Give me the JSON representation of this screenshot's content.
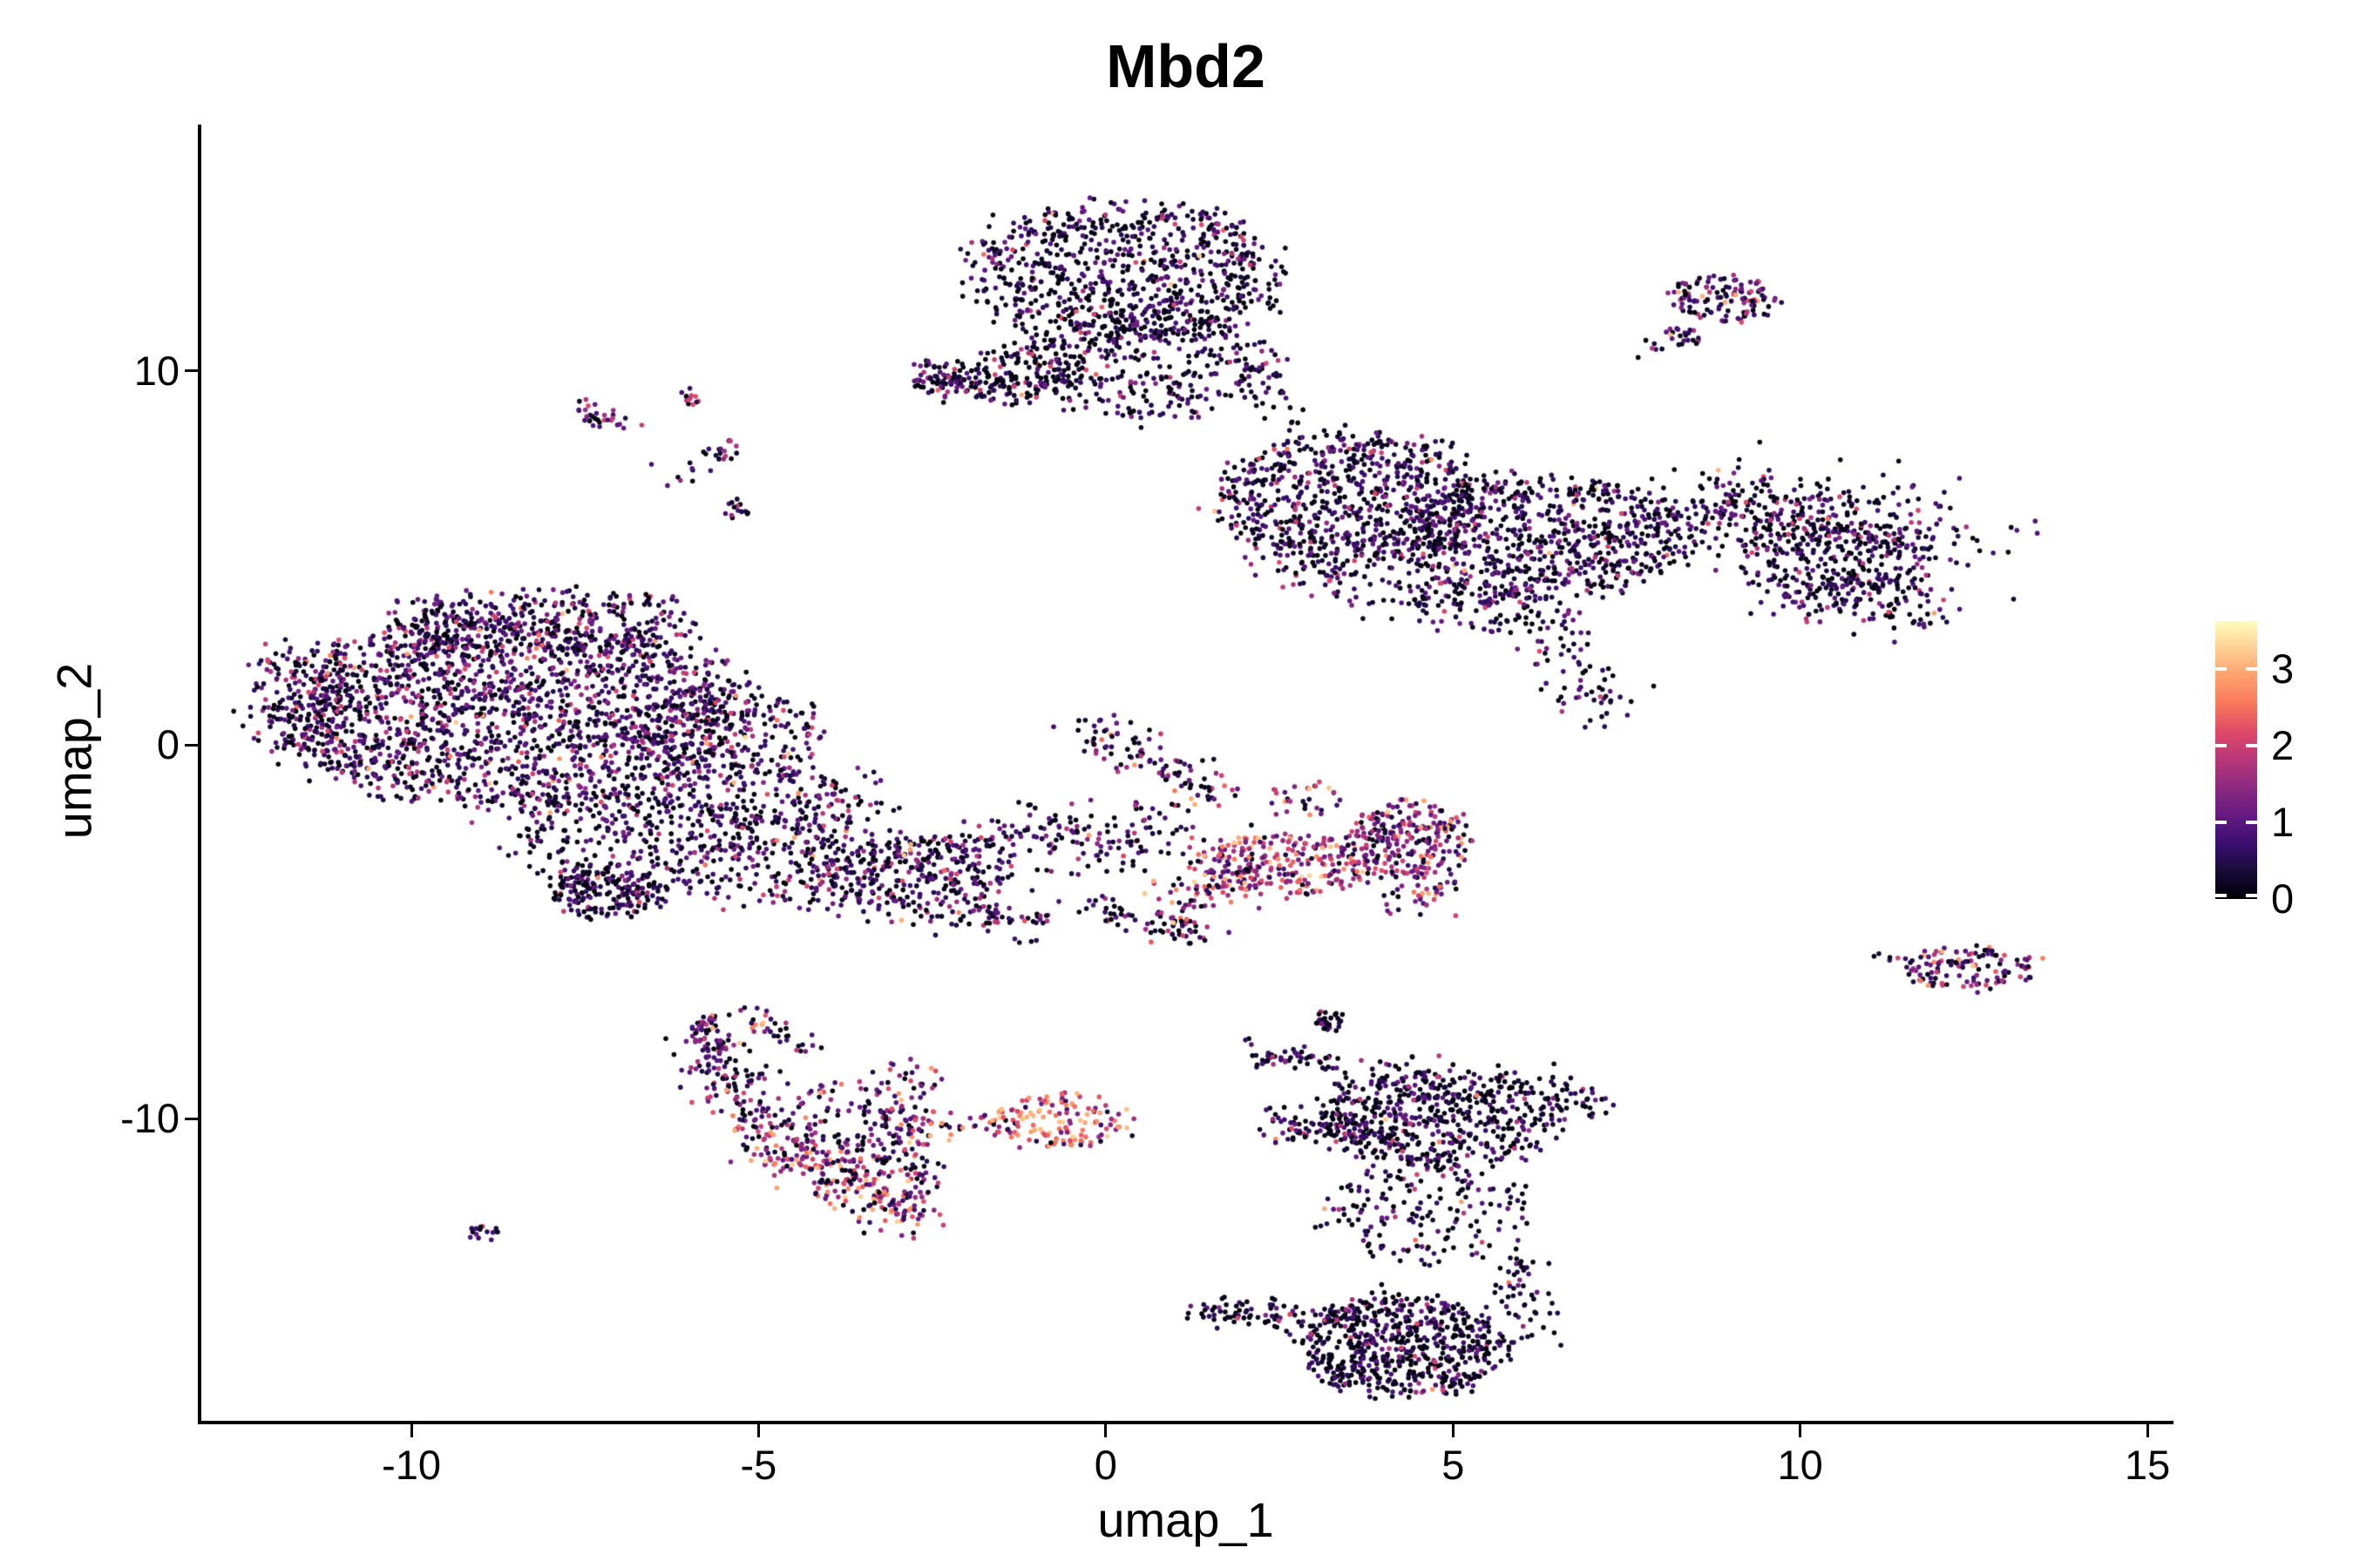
{
  "title": "Mbd2",
  "axes": {
    "x": {
      "label": "umap_1",
      "ticks": [
        -10,
        -5,
        0,
        5,
        10,
        15
      ]
    },
    "y": {
      "label": "umap_2",
      "ticks": [
        -10,
        0,
        10
      ]
    }
  },
  "colorbar": {
    "min": 0,
    "max": 3.63,
    "ticks": [
      0,
      1,
      2,
      3
    ],
    "colormap": "magma",
    "stops": [
      "#000004",
      "#160b39",
      "#3b0f70",
      "#641a80",
      "#8c2981",
      "#b73779",
      "#de4968",
      "#f8765c",
      "#fe9f6d",
      "#fecf92",
      "#fcfdbf"
    ]
  },
  "chart_data": {
    "type": "scatter",
    "title": "Mbd2",
    "xlabel": "umap_1",
    "ylabel": "umap_2",
    "xlim": [
      -13.05,
      15.35
    ],
    "ylim": [
      -18.13,
      16.57
    ],
    "grid": false,
    "legend_position": "right",
    "point_radius_px": 2.8,
    "expression_bands": [
      [
        0,
        0.25
      ],
      [
        0.25,
        1.15
      ],
      [
        1.15,
        2.2
      ],
      [
        2.2,
        3.3
      ]
    ],
    "clusters": [
      {
        "name": "top-center-main",
        "shape": "blob",
        "x": 0.3,
        "y": 12.6,
        "rx": 2.25,
        "ry": 1.9,
        "n": 760,
        "expr": [
          0.48,
          0.44,
          0.075,
          0.005
        ]
      },
      {
        "name": "top-center-lower",
        "shape": "blob",
        "x": 0.55,
        "y": 10.2,
        "rx": 1.85,
        "ry": 1.55,
        "n": 340,
        "expr": [
          0.48,
          0.44,
          0.075,
          0.005
        ]
      },
      {
        "name": "top-center-lowerleft",
        "shape": "blob",
        "x": -1.25,
        "y": 9.9,
        "rx": 0.95,
        "ry": 0.85,
        "n": 120,
        "expr": [
          0.45,
          0.45,
          0.09,
          0.01
        ]
      },
      {
        "name": "top-beak-clump",
        "shape": "blob",
        "x": -2.45,
        "y": 9.85,
        "rx": 0.38,
        "ry": 0.5,
        "n": 55,
        "expr": [
          0.4,
          0.45,
          0.14,
          0.01
        ]
      },
      {
        "name": "top-beak-streak",
        "shape": "streak",
        "x1": -2.2,
        "y1": 9.85,
        "x2": -1.3,
        "y2": 9.65,
        "w": 0.3,
        "n": 55,
        "expr": [
          0.42,
          0.44,
          0.13,
          0.01
        ]
      },
      {
        "name": "top-right-strand",
        "shape": "streak",
        "x1": 2.15,
        "y1": 10.1,
        "x2": 2.95,
        "y2": 8.4,
        "w": 0.22,
        "n": 28,
        "expr": [
          0.45,
          0.45,
          0.1,
          0
        ]
      },
      {
        "name": "topright-small-main",
        "shape": "blob",
        "x": 8.95,
        "y": 11.95,
        "rx": 0.78,
        "ry": 0.6,
        "n": 125,
        "expr": [
          0.2,
          0.5,
          0.24,
          0.06
        ]
      },
      {
        "name": "topright-small-mini",
        "shape": "blob",
        "x": 8.32,
        "y": 10.95,
        "rx": 0.3,
        "ry": 0.3,
        "n": 22,
        "expr": [
          0.25,
          0.45,
          0.25,
          0.05
        ]
      },
      {
        "name": "topright-trail",
        "shape": "streak",
        "x1": 7.75,
        "y1": 10.55,
        "x2": 8.15,
        "y2": 10.75,
        "w": 0.12,
        "n": 6,
        "expr": [
          0.3,
          0.5,
          0.2,
          0
        ]
      },
      {
        "name": "rightband-left-lobe",
        "shape": "blob",
        "x": 3.55,
        "y": 6.55,
        "rx": 1.95,
        "ry": 1.75,
        "n": 720,
        "expr": [
          0.4,
          0.48,
          0.11,
          0.01
        ]
      },
      {
        "name": "rightband-main",
        "shape": "blob",
        "x": 6.3,
        "y": 5.6,
        "rx": 2.2,
        "ry": 1.6,
        "n": 700,
        "expr": [
          0.42,
          0.47,
          0.1,
          0.01
        ]
      },
      {
        "name": "rightband-upper-arm",
        "shape": "streak",
        "x1": 8.2,
        "y1": 6.45,
        "x2": 11.9,
        "y2": 5.6,
        "w": 0.65,
        "n": 380,
        "expr": [
          0.45,
          0.44,
          0.1,
          0.01
        ]
      },
      {
        "name": "rightband-lower-prong",
        "shape": "streak",
        "x1": 9.8,
        "y1": 4.25,
        "x2": 11.95,
        "y2": 3.7,
        "w": 0.4,
        "n": 165,
        "expr": [
          0.42,
          0.45,
          0.12,
          0.01
        ]
      },
      {
        "name": "rightband-mid-fill",
        "shape": "blob",
        "x": 10.5,
        "y": 4.95,
        "rx": 1.45,
        "ry": 0.85,
        "n": 165,
        "expr": [
          0.42,
          0.46,
          0.11,
          0.01
        ]
      },
      {
        "name": "rightband-bottom-edge",
        "shape": "streak",
        "x1": 4.0,
        "y1": 4.3,
        "x2": 6.4,
        "y2": 3.6,
        "w": 0.45,
        "n": 150,
        "expr": [
          0.42,
          0.46,
          0.11,
          0.01
        ]
      },
      {
        "name": "rightband-left-wisp",
        "shape": "streak",
        "x1": 2.5,
        "y1": 4.8,
        "x2": 3.8,
        "y2": 4.3,
        "w": 0.35,
        "n": 60,
        "expr": [
          0.4,
          0.47,
          0.12,
          0.01
        ]
      },
      {
        "name": "rightband-down-tail",
        "shape": "streak",
        "x1": 6.25,
        "y1": 3.3,
        "x2": 7.3,
        "y2": 0.8,
        "w": 0.3,
        "n": 70,
        "expr": [
          0.45,
          0.45,
          0.09,
          0.01
        ]
      },
      {
        "name": "leftbig-main",
        "shape": "blob",
        "x": -8.6,
        "y": 0.9,
        "rx": 3.4,
        "ry": 2.6,
        "n": 1850,
        "expr": [
          0.27,
          0.52,
          0.19,
          0.02
        ]
      },
      {
        "name": "leftbig-top",
        "shape": "blob",
        "x": -8.0,
        "y": 3.3,
        "rx": 2.2,
        "ry": 0.95,
        "n": 300,
        "expr": [
          0.3,
          0.5,
          0.18,
          0.02
        ]
      },
      {
        "name": "leftbig-left-edge",
        "shape": "blob",
        "x": -11.6,
        "y": 1.3,
        "rx": 0.85,
        "ry": 1.6,
        "n": 150,
        "expr": [
          0.3,
          0.52,
          0.17,
          0.01
        ]
      },
      {
        "name": "leftbig-right-ext",
        "shape": "blob",
        "x": -5.4,
        "y": 0.2,
        "rx": 1.35,
        "ry": 1.35,
        "n": 250,
        "expr": [
          0.3,
          0.5,
          0.18,
          0.02
        ]
      },
      {
        "name": "leftbig-bottom-triangle",
        "shape": "blob",
        "x": -6.6,
        "y": -2.6,
        "rx": 1.9,
        "ry": 1.5,
        "n": 400,
        "expr": [
          0.42,
          0.46,
          0.11,
          0.01
        ]
      },
      {
        "name": "leftbig-bottom-clump",
        "shape": "blob",
        "x": -7.15,
        "y": -4.0,
        "rx": 0.8,
        "ry": 0.65,
        "n": 150,
        "expr": [
          0.5,
          0.42,
          0.075,
          0.005
        ]
      },
      {
        "name": "leftbig-lowerright-spray",
        "shape": "blob",
        "x": -4.6,
        "y": -1.9,
        "rx": 1.25,
        "ry": 1.2,
        "n": 130,
        "expr": [
          0.38,
          0.47,
          0.14,
          0.01
        ]
      },
      {
        "name": "left-middle-connector",
        "shape": "blob",
        "x": -3.85,
        "y": -2.0,
        "rx": 0.9,
        "ry": 1.4,
        "n": 70,
        "expr": [
          0.35,
          0.47,
          0.16,
          0.02
        ]
      },
      {
        "name": "speck-streak",
        "shape": "streak",
        "x1": -7.6,
        "y1": 8.95,
        "x2": -6.85,
        "y2": 8.55,
        "w": 0.14,
        "n": 30,
        "expr": [
          0.22,
          0.46,
          0.3,
          0.02
        ]
      },
      {
        "name": "speck-1",
        "shape": "blob",
        "x": -5.95,
        "y": 9.35,
        "rx": 0.2,
        "ry": 0.25,
        "n": 12,
        "expr": [
          0.25,
          0.45,
          0.3,
          0
        ]
      },
      {
        "name": "speck-2",
        "shape": "blob",
        "x": -5.5,
        "y": 7.85,
        "rx": 0.26,
        "ry": 0.3,
        "n": 16,
        "expr": [
          0.3,
          0.4,
          0.3,
          0
        ]
      },
      {
        "name": "speck-3",
        "shape": "blob",
        "x": -5.3,
        "y": 6.35,
        "rx": 0.22,
        "ry": 0.28,
        "n": 14,
        "expr": [
          0.35,
          0.4,
          0.25,
          0
        ]
      },
      {
        "name": "speck-scatter",
        "shape": "blob",
        "x": -6.1,
        "y": 7.4,
        "rx": 0.5,
        "ry": 0.6,
        "n": 10,
        "expr": [
          0.3,
          0.45,
          0.25,
          0
        ]
      },
      {
        "name": "midband-upper-edge",
        "shape": "streak",
        "x1": -5.0,
        "y1": -3.7,
        "x2": -0.6,
        "y2": -2.05,
        "w": 0.25,
        "n": 120,
        "expr": [
          0.34,
          0.46,
          0.18,
          0.02
        ]
      },
      {
        "name": "midband-lower-edge",
        "shape": "streak",
        "x1": -5.0,
        "y1": -3.85,
        "x2": -0.6,
        "y2": -4.85,
        "w": 0.25,
        "n": 120,
        "expr": [
          0.36,
          0.44,
          0.18,
          0.02
        ]
      },
      {
        "name": "midband-fill",
        "shape": "blob",
        "x": -2.7,
        "y": -3.4,
        "rx": 1.5,
        "ry": 0.95,
        "n": 230,
        "expr": [
          0.33,
          0.45,
          0.2,
          0.02
        ]
      },
      {
        "name": "midband-connector",
        "shape": "streak",
        "x1": -1.2,
        "y1": -2.6,
        "x2": 0.9,
        "y2": -2.45,
        "w": 0.5,
        "n": 130,
        "expr": [
          0.3,
          0.44,
          0.23,
          0.03
        ]
      },
      {
        "name": "midband-diag-branch",
        "shape": "streak",
        "x1": -0.3,
        "y1": 0.5,
        "x2": 1.6,
        "y2": -1.35,
        "w": 0.28,
        "n": 110,
        "expr": [
          0.3,
          0.38,
          0.26,
          0.06
        ]
      },
      {
        "name": "midband-low-branch",
        "shape": "streak",
        "x1": -0.3,
        "y1": -4.3,
        "x2": 1.5,
        "y2": -5.05,
        "w": 0.22,
        "n": 75,
        "expr": [
          0.4,
          0.4,
          0.17,
          0.03
        ]
      },
      {
        "name": "midband-pink-band",
        "shape": "blob",
        "x": 2.6,
        "y": -3.2,
        "rx": 1.4,
        "ry": 0.8,
        "n": 260,
        "expr": [
          0.07,
          0.25,
          0.45,
          0.23
        ]
      },
      {
        "name": "midband-pink-tip",
        "shape": "streak",
        "x1": 0.95,
        "y1": -4.2,
        "x2": 2.0,
        "y2": -3.4,
        "w": 0.3,
        "n": 65,
        "expr": [
          0.1,
          0.28,
          0.42,
          0.2
        ]
      },
      {
        "name": "midband-right-lobe",
        "shape": "blob",
        "x": 4.35,
        "y": -2.55,
        "rx": 0.88,
        "ry": 1.05,
        "n": 235,
        "expr": [
          0.1,
          0.33,
          0.42,
          0.15
        ]
      },
      {
        "name": "midband-pink-spray",
        "shape": "blob",
        "x": 2.9,
        "y": -1.5,
        "rx": 0.55,
        "ry": 0.5,
        "n": 30,
        "expr": [
          0.1,
          0.3,
          0.4,
          0.2
        ]
      },
      {
        "name": "midband-lobe-tail",
        "shape": "streak",
        "x1": 3.95,
        "y1": -4.4,
        "x2": 5.0,
        "y2": -3.7,
        "w": 0.25,
        "n": 40,
        "expr": [
          0.15,
          0.35,
          0.35,
          0.15
        ]
      },
      {
        "name": "crescent-tip-clump",
        "shape": "blob",
        "x": -5.69,
        "y": -7.7,
        "rx": 0.3,
        "ry": 0.5,
        "n": 42,
        "expr": [
          0.28,
          0.36,
          0.26,
          0.1
        ]
      },
      {
        "name": "crescent-outer-upper",
        "shape": "streak",
        "x1": -5.75,
        "y1": -7.9,
        "x2": -4.85,
        "y2": -10.6,
        "w": 0.3,
        "n": 150,
        "expr": [
          0.27,
          0.4,
          0.25,
          0.08
        ]
      },
      {
        "name": "crescent-outer-lower",
        "shape": "streak",
        "x1": -4.85,
        "y1": -10.6,
        "x2": -2.9,
        "y2": -12.6,
        "w": 0.32,
        "n": 190,
        "expr": [
          0.08,
          0.22,
          0.38,
          0.32
        ]
      },
      {
        "name": "crescent-fan",
        "shape": "blob",
        "x": -3.7,
        "y": -10.4,
        "rx": 0.95,
        "ry": 1.4,
        "n": 150,
        "expr": [
          0.24,
          0.38,
          0.28,
          0.1
        ]
      },
      {
        "name": "crescent-right-edge",
        "shape": "streak",
        "x1": -2.88,
        "y1": -8.7,
        "x2": -2.78,
        "y2": -12.55,
        "w": 0.26,
        "n": 120,
        "expr": [
          0.18,
          0.34,
          0.32,
          0.16
        ]
      },
      {
        "name": "crescent-arc-top",
        "shape": "streak",
        "x1": -5.25,
        "y1": -7.2,
        "x2": -4.2,
        "y2": -8.2,
        "w": 0.16,
        "n": 35,
        "expr": [
          0.3,
          0.42,
          0.22,
          0.06
        ]
      },
      {
        "name": "orange-blob",
        "shape": "blob",
        "x": -0.68,
        "y": -10.05,
        "rx": 1.08,
        "ry": 0.75,
        "n": 140,
        "expr": [
          0.03,
          0.1,
          0.35,
          0.52
        ]
      },
      {
        "name": "orange-trail",
        "shape": "streak",
        "x1": -2.6,
        "y1": -10.35,
        "x2": -1.6,
        "y2": -10.1,
        "w": 0.18,
        "n": 20,
        "expr": [
          0.2,
          0.3,
          0.3,
          0.2
        ]
      },
      {
        "name": "bottomright-top-arc",
        "shape": "streak",
        "x1": 2.1,
        "y1": -8.3,
        "x2": 3.3,
        "y2": -8.5,
        "w": 0.15,
        "n": 55,
        "expr": [
          0.5,
          0.4,
          0.09,
          0.01
        ]
      },
      {
        "name": "bottomright-top-clump",
        "shape": "blob",
        "x": 3.2,
        "y": -7.4,
        "rx": 0.22,
        "ry": 0.28,
        "n": 30,
        "expr": [
          0.45,
          0.43,
          0.11,
          0.01
        ]
      },
      {
        "name": "bottomright-upper-lobe",
        "shape": "blob",
        "x": 4.86,
        "y": -10.05,
        "rx": 1.76,
        "ry": 1.3,
        "n": 470,
        "expr": [
          0.52,
          0.4,
          0.075,
          0.005
        ]
      },
      {
        "name": "bottomright-upper-spray",
        "shape": "blob",
        "x": 4.67,
        "y": -9.0,
        "rx": 1.5,
        "ry": 0.7,
        "n": 80,
        "expr": [
          0.5,
          0.41,
          0.085,
          0.005
        ]
      },
      {
        "name": "bottomright-left-prong",
        "shape": "streak",
        "x1": 2.55,
        "y1": -10.2,
        "x2": 3.65,
        "y2": -10.4,
        "w": 0.25,
        "n": 85,
        "expr": [
          0.5,
          0.41,
          0.085,
          0.005
        ]
      },
      {
        "name": "bottomright-ne-tip",
        "shape": "streak",
        "x1": 6.3,
        "y1": -9.1,
        "x2": 6.85,
        "y2": -9.65,
        "w": 0.3,
        "n": 45,
        "expr": [
          0.5,
          0.42,
          0.075,
          0.005
        ]
      },
      {
        "name": "bottomright-mid-sparse",
        "shape": "blob",
        "x": 4.67,
        "y": -12.5,
        "rx": 1.5,
        "ry": 1.4,
        "n": 170,
        "expr": [
          0.5,
          0.4,
          0.09,
          0.01
        ]
      },
      {
        "name": "bottomright-bottom",
        "shape": "blob",
        "x": 4.3,
        "y": -16.1,
        "rx": 1.45,
        "ry": 1.4,
        "n": 600,
        "expr": [
          0.56,
          0.37,
          0.065,
          0.005
        ]
      },
      {
        "name": "bottomright-left-tail",
        "shape": "streak",
        "x1": 1.4,
        "y1": -15.1,
        "x2": 3.4,
        "y2": -15.35,
        "w": 0.18,
        "n": 85,
        "expr": [
          0.55,
          0.38,
          0.065,
          0.005
        ]
      },
      {
        "name": "bottomright-right-prong",
        "shape": "streak",
        "x1": 5.75,
        "y1": -13.6,
        "x2": 6.2,
        "y2": -15.8,
        "w": 0.25,
        "n": 55,
        "expr": [
          0.52,
          0.4,
          0.075,
          0.005
        ]
      },
      {
        "name": "tiny-dark-cluster",
        "shape": "blob",
        "x": -8.95,
        "y": -13.1,
        "rx": 0.27,
        "ry": 0.25,
        "n": 16,
        "expr": [
          0.45,
          0.45,
          0.1,
          0
        ]
      },
      {
        "name": "smallright-main",
        "shape": "blob",
        "x": 12.45,
        "y": -6.0,
        "rx": 0.95,
        "ry": 0.6,
        "n": 120,
        "expr": [
          0.17,
          0.4,
          0.32,
          0.11
        ]
      },
      {
        "name": "smallright-trail",
        "shape": "streak",
        "x1": 11.1,
        "y1": -5.65,
        "x2": 11.8,
        "y2": -5.85,
        "w": 0.1,
        "n": 8,
        "expr": [
          0.3,
          0.5,
          0.2,
          0
        ]
      }
    ]
  }
}
